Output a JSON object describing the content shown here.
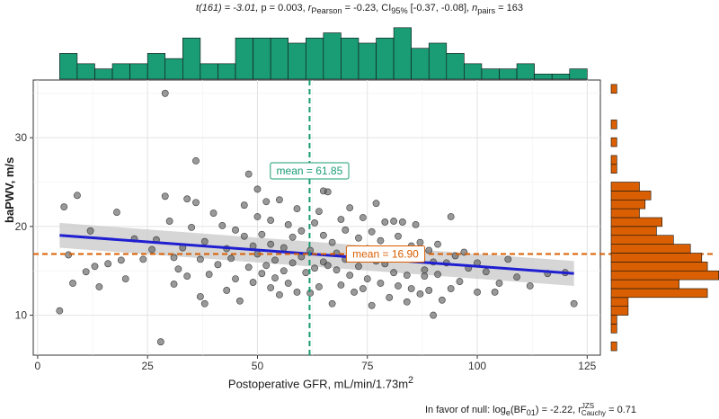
{
  "chart_data": {
    "type": "scatter",
    "subtitle": {
      "t_stat": "t(161) = -3.01, ",
      "p_val": "p = 0.003, ",
      "r_val": "r",
      "r_sub": "Pearson",
      "r_eq": " = -0.23, CI",
      "ci_sub": "95%",
      "ci_val": " [-0.37, -0.08], ",
      "n_val": "n",
      "n_sub": "pairs",
      "n_eq": " = 163"
    },
    "caption": {
      "prefix": "In favor of null: log",
      "log_sub": "e",
      "bf": "(BF",
      "bf_sub": "01",
      "mid": ") = -2.22, r",
      "r_sup": "JZS",
      "r_sub": "Cauchy",
      "end": " = 0.71"
    },
    "xlabel": "Postoperative GFR, mL/min/1.73m",
    "xlabel_sup": "2",
    "ylabel": "baPWV, m/s",
    "xlim": [
      -1,
      128
    ],
    "ylim": [
      5.5,
      36.5
    ],
    "xticks": [
      0,
      25,
      50,
      75,
      100,
      125
    ],
    "yticks": [
      10,
      20,
      30
    ],
    "mean_x": {
      "value": 61.85,
      "label": "mean = 61.85"
    },
    "mean_y": {
      "value": 16.9,
      "label": "mean = 16.90"
    },
    "regression": {
      "x": [
        5,
        122
      ],
      "y": [
        19.0,
        14.7
      ],
      "ci_lo": [
        17.6,
        13.3
      ],
      "ci_hi": [
        20.4,
        16.1
      ]
    },
    "colors": {
      "x_hist": "#1a9c75",
      "y_hist": "#d95f02",
      "line": "#1f1fd1",
      "band": "#c8c8c8",
      "points": "#555555"
    },
    "x_hist": {
      "bins": [
        [
          5,
          9
        ],
        [
          9,
          13
        ],
        [
          13,
          17
        ],
        [
          17,
          21
        ],
        [
          21,
          25
        ],
        [
          25,
          29
        ],
        [
          29,
          33
        ],
        [
          33,
          37
        ],
        [
          37,
          41
        ],
        [
          41,
          45
        ],
        [
          45,
          49
        ],
        [
          49,
          53
        ],
        [
          53,
          57
        ],
        [
          57,
          61
        ],
        [
          61,
          65
        ],
        [
          65,
          69
        ],
        [
          69,
          73
        ],
        [
          73,
          77
        ],
        [
          77,
          81
        ],
        [
          81,
          85
        ],
        [
          85,
          89
        ],
        [
          89,
          93
        ],
        [
          93,
          97
        ],
        [
          97,
          101
        ],
        [
          101,
          105
        ],
        [
          105,
          109
        ],
        [
          109,
          113
        ],
        [
          113,
          117
        ],
        [
          117,
          121
        ],
        [
          121,
          125
        ]
      ],
      "counts": [
        5,
        3,
        2,
        3,
        3,
        5,
        4,
        8,
        3,
        3,
        8,
        8,
        8,
        7,
        8,
        9,
        8,
        7,
        8,
        10,
        6,
        7,
        5,
        3,
        2,
        2,
        3,
        1,
        1,
        2
      ]
    },
    "y_hist": {
      "bins": [
        [
          6,
          7
        ],
        [
          7,
          8
        ],
        [
          8,
          9
        ],
        [
          9,
          10
        ],
        [
          10,
          11
        ],
        [
          11,
          12
        ],
        [
          12,
          13
        ],
        [
          13,
          14
        ],
        [
          14,
          15
        ],
        [
          15,
          16
        ],
        [
          16,
          17
        ],
        [
          17,
          18
        ],
        [
          18,
          19
        ],
        [
          19,
          20
        ],
        [
          20,
          21
        ],
        [
          21,
          22
        ],
        [
          22,
          23
        ],
        [
          23,
          24
        ],
        [
          24,
          25
        ],
        [
          25,
          26
        ],
        [
          26,
          27
        ],
        [
          27,
          28
        ],
        [
          28,
          29
        ],
        [
          29,
          30
        ],
        [
          30,
          31
        ],
        [
          31,
          32
        ],
        [
          32,
          33
        ],
        [
          33,
          34
        ],
        [
          34,
          35
        ],
        [
          35,
          36
        ]
      ],
      "counts": [
        1,
        0,
        1,
        1,
        3,
        3,
        17,
        12,
        19,
        17,
        16,
        14,
        11,
        8,
        9,
        5,
        6,
        7,
        5,
        0,
        1,
        1,
        0,
        1,
        0,
        1,
        0,
        0,
        0,
        1
      ]
    },
    "points": [
      [
        5,
        10.5
      ],
      [
        6,
        22.2
      ],
      [
        7,
        16.8
      ],
      [
        8,
        13.6
      ],
      [
        9,
        23.5
      ],
      [
        11,
        14.9
      ],
      [
        12,
        19.5
      ],
      [
        13,
        15.5
      ],
      [
        14,
        13.2
      ],
      [
        16,
        15.8
      ],
      [
        18,
        21.6
      ],
      [
        19,
        16.2
      ],
      [
        20,
        14.1
      ],
      [
        22,
        18.6
      ],
      [
        24,
        16.3
      ],
      [
        26,
        17.4
      ],
      [
        27,
        18.5
      ],
      [
        28,
        7.0
      ],
      [
        29,
        23.4
      ],
      [
        29,
        35.0
      ],
      [
        30,
        20.6
      ],
      [
        31,
        13.5
      ],
      [
        31,
        16.5
      ],
      [
        32,
        15.2
      ],
      [
        33,
        17.6
      ],
      [
        34,
        14.4
      ],
      [
        34,
        23.1
      ],
      [
        35,
        19.9
      ],
      [
        36,
        27.4
      ],
      [
        36,
        22.7
      ],
      [
        37,
        12.1
      ],
      [
        37,
        16.3
      ],
      [
        38,
        18.3
      ],
      [
        38,
        11.3
      ],
      [
        39,
        14.6
      ],
      [
        40,
        21.5
      ],
      [
        41,
        15.7
      ],
      [
        42,
        20.1
      ],
      [
        43,
        17.5
      ],
      [
        43,
        12.8
      ],
      [
        44,
        16.4
      ],
      [
        45,
        19.6
      ],
      [
        45,
        14.1
      ],
      [
        46,
        11.6
      ],
      [
        47,
        18.9
      ],
      [
        47,
        22.4
      ],
      [
        48,
        15.4
      ],
      [
        48,
        25.9
      ],
      [
        49,
        13.7
      ],
      [
        49,
        17.8
      ],
      [
        50,
        16.9
      ],
      [
        50,
        21.1
      ],
      [
        50,
        24.2
      ],
      [
        51,
        14.7
      ],
      [
        51,
        19.1
      ],
      [
        52,
        15.6
      ],
      [
        52,
        22.8
      ],
      [
        53,
        13.1
      ],
      [
        53,
        18.0
      ],
      [
        53,
        20.7
      ],
      [
        54,
        16.2
      ],
      [
        54,
        14.2
      ],
      [
        55,
        23.0
      ],
      [
        55,
        12.3
      ],
      [
        56,
        15.0
      ],
      [
        56,
        17.6
      ],
      [
        57,
        20.2
      ],
      [
        57,
        13.6
      ],
      [
        58,
        18.8
      ],
      [
        58,
        15.9
      ],
      [
        59,
        12.6
      ],
      [
        59,
        22.0
      ],
      [
        60,
        16.6
      ],
      [
        60,
        19.5
      ],
      [
        61,
        14.8
      ],
      [
        62,
        17.3
      ],
      [
        62,
        12.5
      ],
      [
        63,
        20.4
      ],
      [
        63,
        15.3
      ],
      [
        64,
        21.7
      ],
      [
        64,
        13.2
      ],
      [
        65,
        16.0
      ],
      [
        65,
        19.0
      ],
      [
        65,
        24.0
      ],
      [
        66,
        15.6
      ],
      [
        66,
        23.9
      ],
      [
        67,
        11.3
      ],
      [
        67,
        18.2
      ],
      [
        68,
        15.1
      ],
      [
        68,
        17.0
      ],
      [
        69,
        13.4
      ],
      [
        69,
        20.8
      ],
      [
        70,
        16.3
      ],
      [
        70,
        19.6
      ],
      [
        71,
        14.5
      ],
      [
        71,
        22.1
      ],
      [
        72,
        16.9
      ],
      [
        72,
        12.6
      ],
      [
        73,
        18.7
      ],
      [
        73,
        15.5
      ],
      [
        74,
        13.0
      ],
      [
        74,
        21.0
      ],
      [
        75,
        17.5
      ],
      [
        75,
        14.1
      ],
      [
        76,
        19.4
      ],
      [
        76,
        11.1
      ],
      [
        77,
        16.1
      ],
      [
        77,
        22.6
      ],
      [
        78,
        13.6
      ],
      [
        78,
        18.4
      ],
      [
        79,
        15.8
      ],
      [
        79,
        20.5
      ],
      [
        80,
        12.0
      ],
      [
        80,
        17.1
      ],
      [
        81,
        20.6
      ],
      [
        81,
        14.8
      ],
      [
        82,
        13.3
      ],
      [
        82,
        18.9
      ],
      [
        83,
        16.5
      ],
      [
        83,
        20.5
      ],
      [
        84,
        11.5
      ],
      [
        84,
        14.5
      ],
      [
        85,
        17.8
      ],
      [
        85,
        13.0
      ],
      [
        86,
        16.3
      ],
      [
        86,
        20.2
      ],
      [
        87,
        12.4
      ],
      [
        87,
        18.2
      ],
      [
        88,
        15.1
      ],
      [
        88,
        14.4
      ],
      [
        89,
        17.3
      ],
      [
        89,
        12.8
      ],
      [
        90,
        16.0
      ],
      [
        90,
        10.0
      ],
      [
        91,
        14.6
      ],
      [
        91,
        18.0
      ],
      [
        92,
        11.7
      ],
      [
        93,
        15.9
      ],
      [
        94,
        21.1
      ],
      [
        94,
        13.0
      ],
      [
        95,
        16.7
      ],
      [
        96,
        13.8
      ],
      [
        97,
        17.1
      ],
      [
        98,
        15.3
      ],
      [
        100,
        12.6
      ],
      [
        100,
        15.9
      ],
      [
        102,
        14.9
      ],
      [
        104,
        12.6
      ],
      [
        105,
        13.6
      ],
      [
        107,
        16.3
      ],
      [
        109,
        14.3
      ],
      [
        112,
        13.3
      ],
      [
        116,
        14.7
      ],
      [
        120,
        14.8
      ],
      [
        122,
        11.3
      ]
    ]
  }
}
